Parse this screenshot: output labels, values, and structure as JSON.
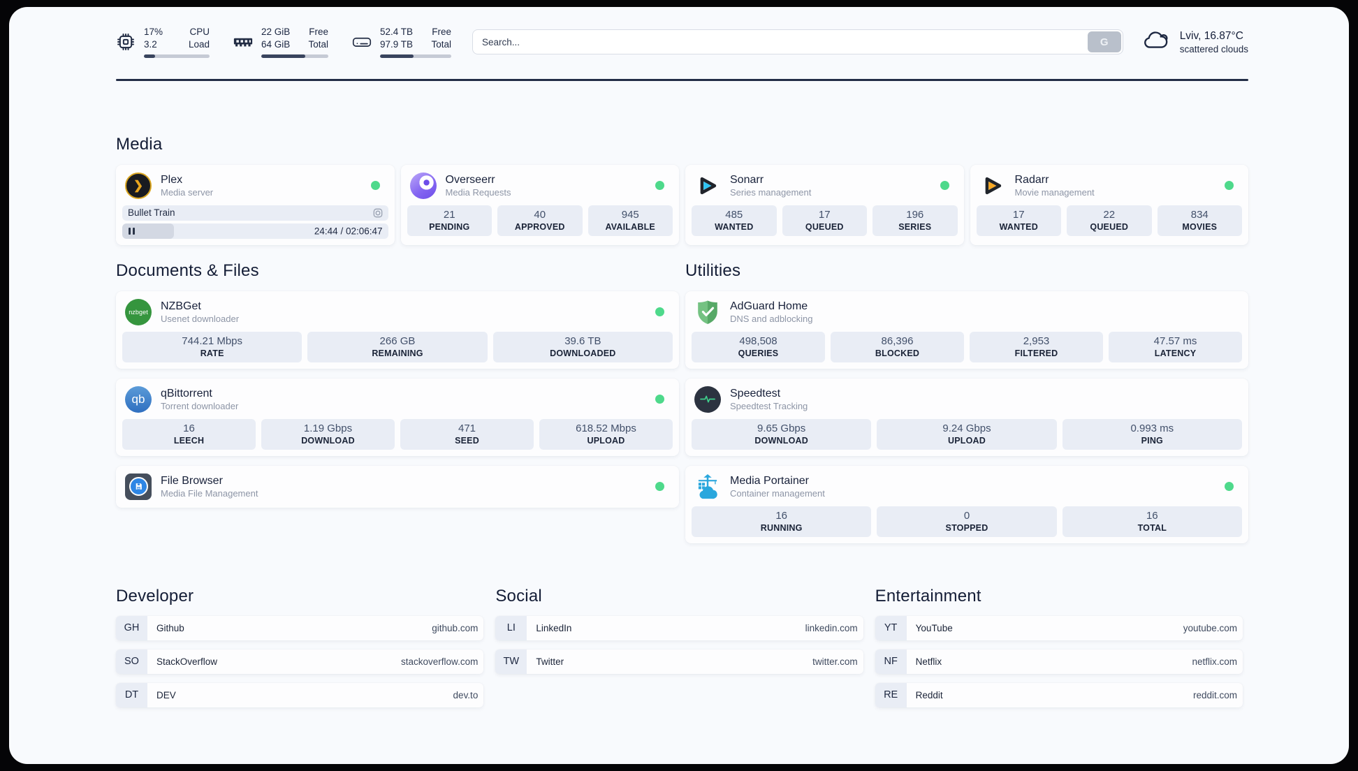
{
  "colors": {
    "status_online": "#4ed98b",
    "accent_dark": "#222c44",
    "page_background": "#f8fafd"
  },
  "header": {
    "cpu": {
      "value_top": "17%",
      "value_bottom": "3.2",
      "label_top": "CPU",
      "label_bottom": "Load",
      "percent": 17
    },
    "memory": {
      "value_top": "22 GiB",
      "value_bottom": "64 GiB",
      "label_top": "Free",
      "label_bottom": "Total",
      "percent": 66
    },
    "disk": {
      "value_top": "52.4 TB",
      "value_bottom": "97.9 TB",
      "label_top": "Free",
      "label_bottom": "Total",
      "percent": 47
    },
    "search": {
      "placeholder": "Search...",
      "button_label": "G"
    },
    "weather": {
      "location": "Lviv, 16.87°C",
      "condition": "scattered clouds"
    }
  },
  "sections": {
    "media": {
      "title": "Media"
    },
    "documents": {
      "title": "Documents & Files"
    },
    "utilities": {
      "title": "Utilities"
    }
  },
  "apps": {
    "plex": {
      "name": "Plex",
      "subtitle": "Media server",
      "online": true,
      "player": {
        "title": "Bullet Train",
        "time": "24:44 / 02:06:47",
        "progress_percent": 19.5
      }
    },
    "overseerr": {
      "name": "Overseerr",
      "subtitle": "Media Requests",
      "online": true,
      "stats": [
        {
          "value": "21",
          "label": "PENDING"
        },
        {
          "value": "40",
          "label": "APPROVED"
        },
        {
          "value": "945",
          "label": "AVAILABLE"
        }
      ]
    },
    "sonarr": {
      "name": "Sonarr",
      "subtitle": "Series management",
      "online": true,
      "stats": [
        {
          "value": "485",
          "label": "WANTED"
        },
        {
          "value": "17",
          "label": "QUEUED"
        },
        {
          "value": "196",
          "label": "SERIES"
        }
      ]
    },
    "radarr": {
      "name": "Radarr",
      "subtitle": "Movie management",
      "online": true,
      "stats": [
        {
          "value": "17",
          "label": "WANTED"
        },
        {
          "value": "22",
          "label": "QUEUED"
        },
        {
          "value": "834",
          "label": "MOVIES"
        }
      ]
    },
    "nzbget": {
      "name": "NZBGet",
      "subtitle": "Usenet downloader",
      "online": true,
      "icon_text": "nzbget",
      "stats": [
        {
          "value": "744.21 Mbps",
          "label": "RATE"
        },
        {
          "value": "266 GB",
          "label": "REMAINING"
        },
        {
          "value": "39.6 TB",
          "label": "DOWNLOADED"
        }
      ]
    },
    "qbittorrent": {
      "name": "qBittorrent",
      "subtitle": "Torrent downloader",
      "online": true,
      "icon_text": "qb",
      "stats": [
        {
          "value": "16",
          "label": "LEECH"
        },
        {
          "value": "1.19 Gbps",
          "label": "DOWNLOAD"
        },
        {
          "value": "471",
          "label": "SEED"
        },
        {
          "value": "618.52 Mbps",
          "label": "UPLOAD"
        }
      ]
    },
    "filebrowser": {
      "name": "File Browser",
      "subtitle": "Media File Management",
      "online": true
    },
    "adguard": {
      "name": "AdGuard Home",
      "subtitle": "DNS and adblocking",
      "online": false,
      "stats": [
        {
          "value": "498,508",
          "label": "QUERIES"
        },
        {
          "value": "86,396",
          "label": "BLOCKED"
        },
        {
          "value": "2,953",
          "label": "FILTERED"
        },
        {
          "value": "47.57 ms",
          "label": "LATENCY"
        }
      ]
    },
    "speedtest": {
      "name": "Speedtest",
      "subtitle": "Speedtest Tracking",
      "online": false,
      "stats": [
        {
          "value": "9.65 Gbps",
          "label": "DOWNLOAD"
        },
        {
          "value": "9.24 Gbps",
          "label": "UPLOAD"
        },
        {
          "value": "0.993 ms",
          "label": "PING"
        }
      ]
    },
    "portainer": {
      "name": "Media Portainer",
      "subtitle": "Container management",
      "online": true,
      "stats": [
        {
          "value": "16",
          "label": "RUNNING"
        },
        {
          "value": "0",
          "label": "STOPPED"
        },
        {
          "value": "16",
          "label": "TOTAL"
        }
      ]
    }
  },
  "link_sections": [
    {
      "title": "Developer",
      "items": [
        {
          "abbr": "GH",
          "label": "Github",
          "url": "github.com"
        },
        {
          "abbr": "SO",
          "label": "StackOverflow",
          "url": "stackoverflow.com"
        },
        {
          "abbr": "DT",
          "label": "DEV",
          "url": "dev.to"
        }
      ]
    },
    {
      "title": "Social",
      "items": [
        {
          "abbr": "LI",
          "label": "LinkedIn",
          "url": "linkedin.com"
        },
        {
          "abbr": "TW",
          "label": "Twitter",
          "url": "twitter.com"
        }
      ]
    },
    {
      "title": "Entertainment",
      "items": [
        {
          "abbr": "YT",
          "label": "YouTube",
          "url": "youtube.com"
        },
        {
          "abbr": "NF",
          "label": "Netflix",
          "url": "netflix.com"
        },
        {
          "abbr": "RE",
          "label": "Reddit",
          "url": "reddit.com"
        }
      ]
    }
  ]
}
